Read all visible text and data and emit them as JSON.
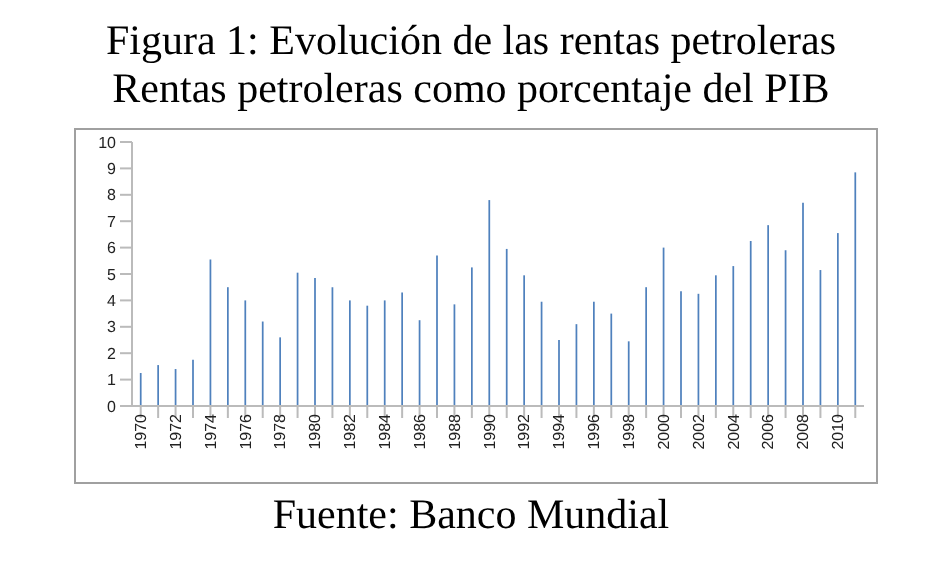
{
  "chart_data": {
    "type": "bar",
    "title": "Figura 1: Evolución de las rentas petroleras",
    "subtitle": "Rentas petroleras como porcentaje del PIB",
    "annotations": [
      "Fuente: Banco Mundial"
    ],
    "categories": [
      "1970",
      null,
      "1972",
      null,
      "1974",
      null,
      "1976",
      null,
      "1978",
      null,
      "1980",
      null,
      "1982",
      null,
      "1984",
      null,
      "1986",
      null,
      "1988",
      null,
      "1990",
      null,
      "1992",
      null,
      "1994",
      null,
      "1996",
      null,
      "1998",
      null,
      "2000",
      null,
      "2002",
      null,
      "2004",
      null,
      "2006",
      null,
      "2008",
      null,
      "2010",
      null
    ],
    "values": [
      1.25,
      1.55,
      1.4,
      1.75,
      5.55,
      4.5,
      4.0,
      3.2,
      2.6,
      5.05,
      4.85,
      4.5,
      4.0,
      3.8,
      4.0,
      4.3,
      3.25,
      5.7,
      3.85,
      5.25,
      7.8,
      5.95,
      4.95,
      3.95,
      2.5,
      3.1,
      3.95,
      3.5,
      2.45,
      4.5,
      6.0,
      4.35,
      4.25,
      4.95,
      5.3,
      6.25,
      6.85,
      5.9,
      7.7,
      5.15,
      6.55,
      8.85
    ],
    "color": "#4f81bd",
    "ylim": [
      0,
      10
    ],
    "yticks": [
      0,
      1,
      2,
      3,
      4,
      5,
      6,
      7,
      8,
      9,
      10
    ],
    "grid": false,
    "legend": false
  }
}
